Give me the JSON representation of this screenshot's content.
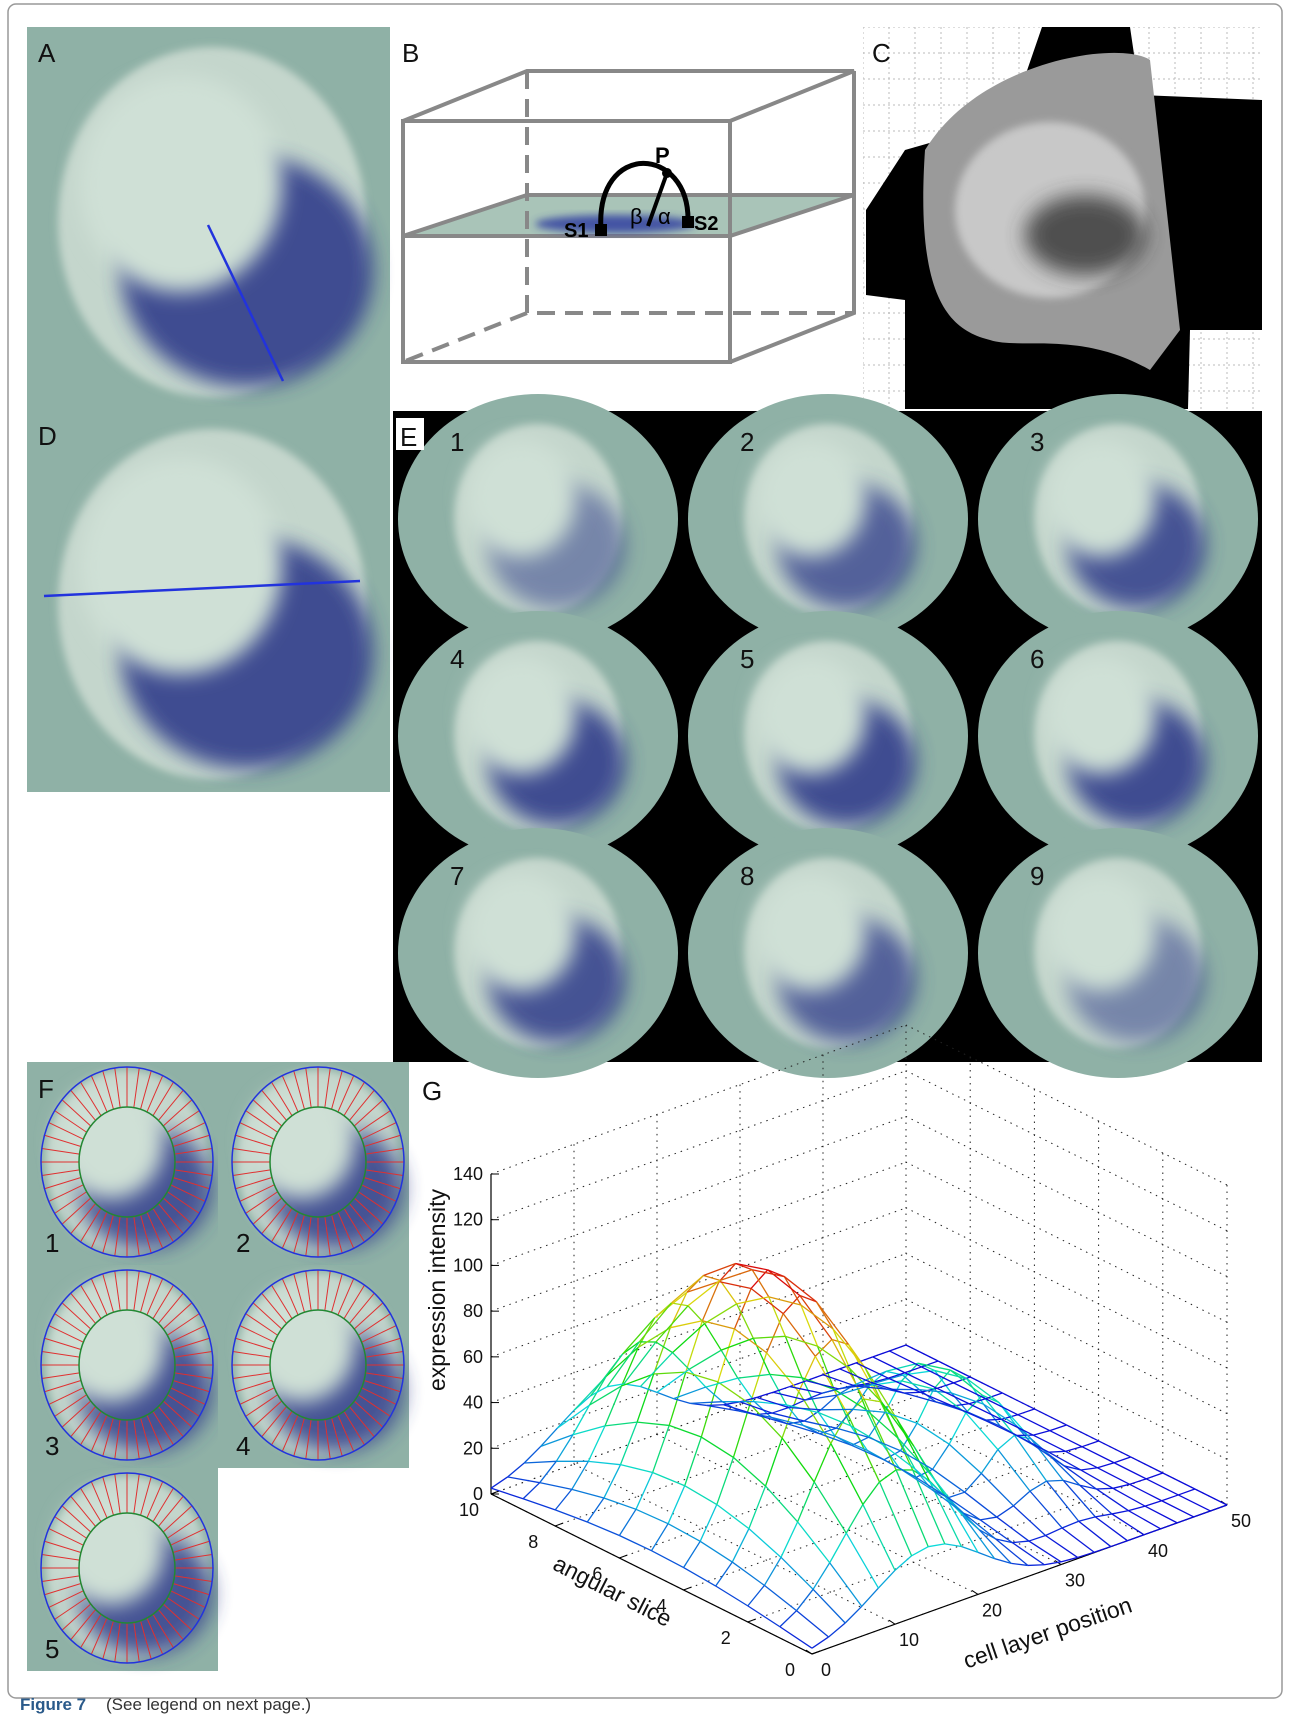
{
  "panel_labels": [
    "A",
    "B",
    "C",
    "D",
    "E",
    "F",
    "G"
  ],
  "panel_b": {
    "point": "P",
    "start": "S1",
    "end": "S2",
    "angle_beta": "β",
    "angle_alpha": "α"
  },
  "panel_e": {
    "slices": [
      "1",
      "2",
      "3",
      "4",
      "5",
      "6",
      "7",
      "8",
      "9"
    ]
  },
  "panel_f": {
    "slices": [
      "1",
      "2",
      "3",
      "4",
      "5"
    ]
  },
  "panel_g": {
    "z_label": "expression intensity",
    "y_label": "angular slice",
    "x_label": "cell layer position",
    "z_ticks": [
      0,
      20,
      40,
      60,
      80,
      100,
      120,
      140
    ],
    "y_ticks": [
      0,
      2,
      4,
      6,
      8,
      10
    ],
    "x_ticks": [
      0,
      10,
      20,
      30,
      40,
      50
    ]
  },
  "caption": {
    "label": "Figure 7",
    "text": "(See legend on next page.)"
  }
}
